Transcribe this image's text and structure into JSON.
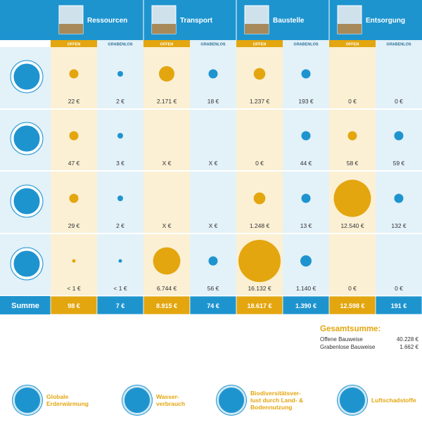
{
  "chart_data": {
    "type": "table",
    "categories": [
      "Ressourcen",
      "Transport",
      "Baustelle",
      "Entsorgung"
    ],
    "sub_columns": [
      "OFFEN",
      "GRABENLOS"
    ],
    "rows": [
      {
        "name": "Globale Erderwärmung",
        "icon": "thermometer-icon",
        "values": [
          22,
          2,
          2171,
          18,
          1237,
          193,
          0,
          0
        ],
        "labels": [
          "22 €",
          "2 €",
          "2.171 €",
          "18 €",
          "1.237 €",
          "193 €",
          "0 €",
          "0 €"
        ]
      },
      {
        "name": "Wasserverbrauch",
        "icon": "water-drop-icon",
        "values": [
          47,
          3,
          null,
          null,
          0,
          44,
          58,
          59
        ],
        "labels": [
          "47 €",
          "3 €",
          "X €",
          "X €",
          "0 €",
          "44 €",
          "58 €",
          "59 €"
        ]
      },
      {
        "name": "Biodiversitätsverlust durch Land- & Bodennutzung",
        "icon": "land-use-icon",
        "values": [
          29,
          2,
          null,
          null,
          1248,
          13,
          12540,
          132
        ],
        "labels": [
          "29 €",
          "2 €",
          "X €",
          "X €",
          "1.248 €",
          "13 €",
          "12.540 €",
          "132 €"
        ]
      },
      {
        "name": "Luftschadstoffe",
        "icon": "gas-mask-icon",
        "values": [
          0.5,
          0.5,
          6744,
          56,
          16132,
          1140,
          0,
          0
        ],
        "labels": [
          "< 1 €",
          "< 1 €",
          "6.744 €",
          "56 €",
          "16.132 €",
          "1.140 €",
          "0 €",
          "0 €"
        ]
      }
    ],
    "sum_title": "Summe",
    "sums": [
      "98 €",
      "7 €",
      "8.915 €",
      "74 €",
      "18.617 €",
      "1.390 €",
      "12.598 €",
      "191 €"
    ],
    "colors": {
      "offen": "#e3a60f",
      "grabenlos": "#1e94cf",
      "header": "#1e94cf",
      "offen_bg": "#fbf0d4",
      "grabenlos_bg": "#e3f1f9"
    }
  },
  "totals": {
    "title": "Gesamtsumme:",
    "rows": [
      {
        "label": "Offene Bauweise",
        "value": "40.228 €"
      },
      {
        "label": "Grabenlose Bauweise",
        "value": "1.662 €"
      }
    ]
  },
  "legend": [
    {
      "icon": "thermometer-icon",
      "text": "Globale\nErderwärmung"
    },
    {
      "icon": "water-drop-icon",
      "text": "Wasser-\nverbrauch"
    },
    {
      "icon": "land-use-icon",
      "text": "Biodiversitätsver-\nlust durch Land- &\nBodennutzung"
    },
    {
      "icon": "gas-mask-icon",
      "text": "Luftschadstoffe"
    }
  ]
}
